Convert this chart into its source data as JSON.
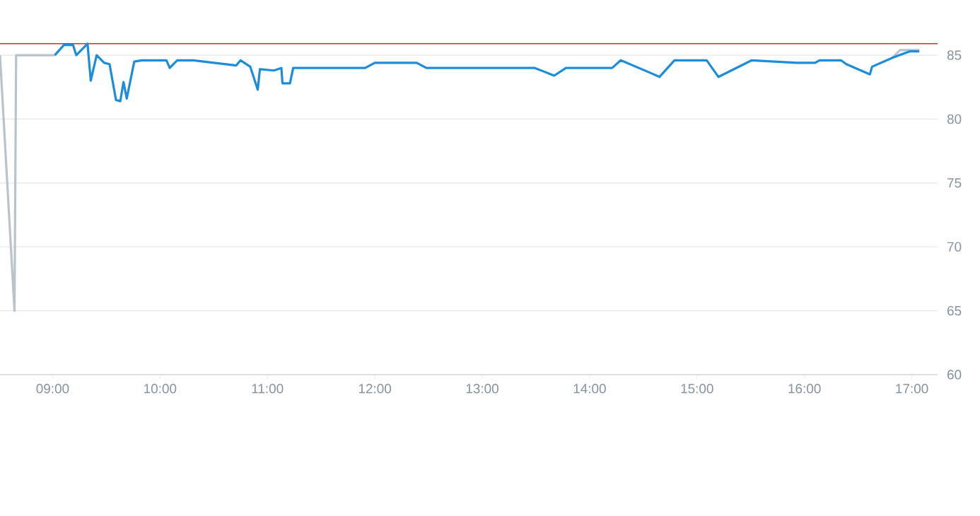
{
  "chart_data": {
    "type": "line",
    "xlim": [
      8.51,
      17.24
    ],
    "ylim": [
      60,
      86
    ],
    "xticks": [
      {
        "value": 9,
        "label": "09:00"
      },
      {
        "value": 10,
        "label": "10:00"
      },
      {
        "value": 11,
        "label": "11:00"
      },
      {
        "value": 12,
        "label": "12:00"
      },
      {
        "value": 13,
        "label": "13:00"
      },
      {
        "value": 14,
        "label": "14:00"
      },
      {
        "value": 15,
        "label": "15:00"
      },
      {
        "value": 16,
        "label": "16:00"
      },
      {
        "value": 17,
        "label": "17:00"
      }
    ],
    "yticks": [
      60,
      65,
      70,
      75,
      80,
      85
    ],
    "grid": "y",
    "marker": "none",
    "line_style": "solid",
    "ref_lines": [
      {
        "axis": "y",
        "value": 85.9,
        "color": "#d0312d"
      }
    ],
    "series": [
      {
        "color": "#b9c3cb",
        "x": [
          8.51,
          8.645,
          8.66,
          9.02,
          16.8,
          16.82,
          16.89,
          17.07
        ],
        "values": [
          85,
          65,
          85,
          85,
          null,
          84.8,
          85.4,
          85.4
        ]
      },
      {
        "color": "#1c8ddc",
        "x": [
          9.02,
          9.105,
          9.19,
          9.22,
          9.325,
          9.355,
          9.41,
          9.48,
          9.53,
          9.59,
          9.63,
          9.66,
          9.69,
          9.76,
          9.83,
          10.06,
          10.09,
          10.16,
          10.31,
          10.71,
          10.75,
          10.84,
          10.91,
          10.93,
          11.06,
          11.13,
          11.14,
          11.21,
          11.24,
          11.91,
          12.0,
          12.39,
          12.48,
          13.49,
          13.67,
          13.78,
          14.21,
          14.29,
          14.57,
          14.65,
          14.79,
          15.09,
          15.2,
          15.51,
          15.93,
          16.1,
          16.14,
          16.34,
          16.39,
          16.61,
          16.63,
          16.82,
          16.98,
          17.07
        ],
        "values": [
          85.0,
          85.8,
          85.8,
          85.0,
          85.9,
          83.0,
          85.0,
          84.4,
          84.3,
          81.5,
          81.4,
          82.9,
          81.6,
          84.5,
          84.6,
          84.6,
          84.0,
          84.6,
          84.6,
          84.2,
          84.6,
          84.1,
          82.3,
          83.9,
          83.8,
          84.0,
          82.8,
          82.8,
          84.0,
          84.0,
          84.4,
          84.4,
          84.0,
          84.0,
          83.4,
          84.0,
          84.0,
          84.6,
          83.6,
          83.3,
          84.6,
          84.6,
          83.3,
          84.6,
          84.4,
          84.4,
          84.6,
          84.6,
          84.3,
          83.5,
          84.1,
          84.8,
          85.3,
          85.3
        ]
      }
    ]
  }
}
